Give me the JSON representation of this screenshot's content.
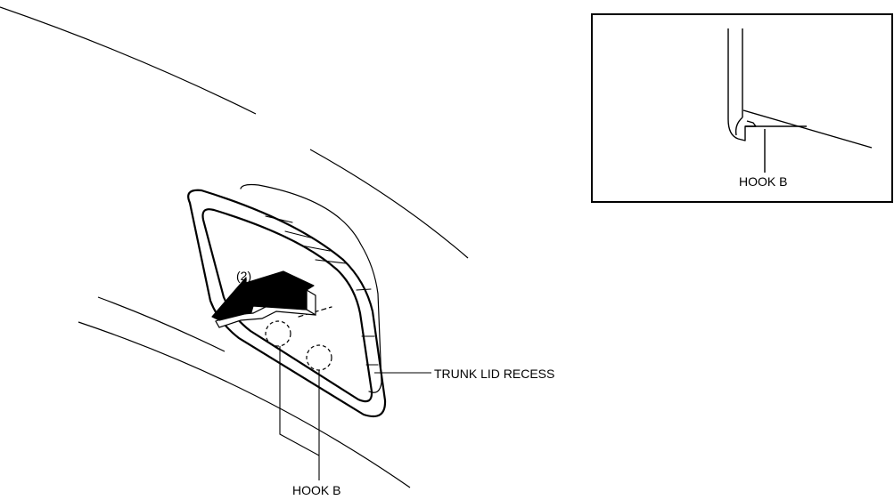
{
  "labels": {
    "step": "(2)",
    "trunk_lid_recess": "TRUNK LID RECESS",
    "hook_b_main": "HOOK B",
    "hook_b_detail": "HOOK B"
  },
  "colors": {
    "line": "#000000",
    "background": "#ffffff"
  },
  "icons": {
    "arrow": "removal-direction-arrow"
  }
}
